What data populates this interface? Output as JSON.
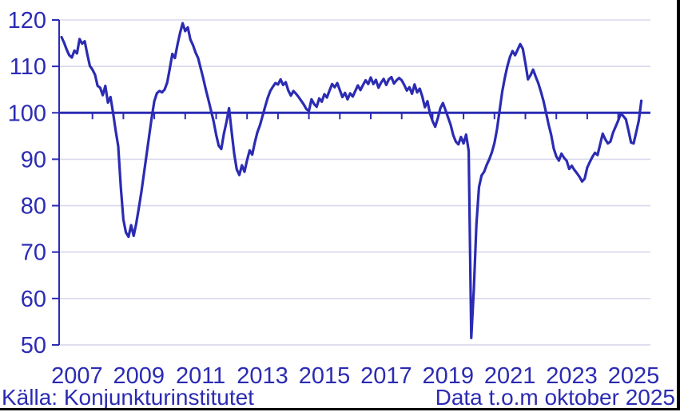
{
  "captions": {
    "source": "Källa: Konjunkturinstitutet",
    "note": "Data t.o.m oktober 2025"
  },
  "colors": {
    "accent": "#2B2BB3",
    "gridline": "#D8D8EC",
    "border": "#000000",
    "background": "#FFFFFF"
  },
  "chart_data": {
    "type": "line",
    "title": "",
    "xlabel": "",
    "ylabel": "",
    "ylim": [
      50,
      120
    ],
    "y_ticks": [
      120,
      110,
      100,
      90,
      80,
      70,
      60,
      50
    ],
    "reference_line": 100,
    "grid": "horizontal-only",
    "legend": "none",
    "x_year_labels": [
      "2007",
      "2009",
      "2011",
      "2013",
      "2015",
      "2017",
      "2019",
      "2021",
      "2023",
      "2025"
    ],
    "x_tick_years": [
      2008,
      2009,
      2010,
      2011,
      2012,
      2013,
      2014,
      2015,
      2016,
      2017,
      2018,
      2019,
      2020,
      2021,
      2022,
      2023,
      2024,
      2025
    ],
    "series": [
      {
        "start": "2007-01",
        "end": "2025-10",
        "frequency": "monthly",
        "values": [
          116.3,
          115.1,
          113.6,
          112.4,
          111.9,
          113.4,
          112.8,
          115.9,
          114.9,
          115.4,
          112.6,
          110.1,
          109.3,
          108.2,
          105.8,
          105.4,
          103.8,
          105.8,
          102.2,
          103.4,
          100.0,
          96.2,
          92.8,
          84.0,
          77.0,
          74.2,
          73.3,
          75.8,
          73.5,
          76.2,
          79.5,
          83.0,
          87.0,
          91.0,
          95.0,
          99.0,
          102.5,
          104.2,
          104.7,
          104.4,
          105.0,
          106.5,
          109.5,
          112.7,
          111.8,
          114.7,
          117.2,
          119.3,
          117.6,
          118.4,
          115.8,
          114.6,
          113.0,
          111.8,
          109.6,
          107.4,
          105.0,
          102.8,
          100.5,
          98.2,
          95.3,
          92.9,
          92.2,
          95.5,
          98.0,
          101.0,
          96.0,
          91.2,
          87.8,
          86.6,
          88.7,
          87.3,
          89.8,
          91.9,
          91.0,
          93.6,
          95.8,
          97.3,
          99.3,
          101.3,
          103.2,
          104.7,
          105.6,
          106.4,
          106.1,
          107.2,
          106.0,
          106.6,
          104.8,
          103.7,
          104.7,
          104.1,
          103.4,
          102.6,
          101.8,
          100.8,
          100.4,
          102.9,
          101.9,
          101.3,
          103.1,
          102.4,
          104.0,
          103.3,
          104.8,
          106.2,
          105.5,
          106.4,
          104.9,
          103.4,
          104.3,
          102.9,
          104.2,
          103.5,
          104.7,
          105.9,
          104.9,
          106.0,
          107.0,
          106.2,
          107.6,
          106.2,
          107.1,
          105.4,
          106.5,
          107.3,
          106.0,
          107.2,
          107.7,
          106.3,
          107.0,
          107.5,
          107.0,
          106.0,
          104.8,
          105.5,
          104.1,
          106.1,
          104.4,
          105.2,
          103.5,
          101.2,
          102.5,
          99.8,
          98.2,
          97.0,
          98.8,
          101.0,
          102.1,
          100.6,
          99.0,
          97.4,
          95.2,
          93.8,
          93.2,
          94.8,
          93.4,
          95.3,
          91.8,
          51.5,
          62.0,
          76.0,
          84.0,
          86.5,
          87.3,
          88.8,
          90.0,
          91.5,
          93.5,
          96.5,
          100.5,
          104.5,
          107.5,
          110.0,
          112.0,
          113.3,
          112.4,
          113.6,
          114.8,
          113.8,
          110.7,
          107.2,
          108.1,
          109.3,
          107.8,
          106.4,
          104.6,
          102.6,
          100.1,
          97.5,
          95.3,
          92.3,
          90.6,
          89.7,
          91.2,
          90.3,
          89.7,
          87.9,
          88.6,
          87.7,
          87.0,
          86.2,
          85.2,
          85.8,
          88.2,
          89.4,
          90.5,
          91.4,
          90.9,
          93.2,
          95.5,
          94.3,
          93.4,
          93.8,
          95.7,
          97.0,
          98.3,
          99.8,
          99.3,
          98.6,
          96.2,
          93.6,
          93.4,
          95.8,
          98.3,
          102.6
        ]
      }
    ]
  }
}
